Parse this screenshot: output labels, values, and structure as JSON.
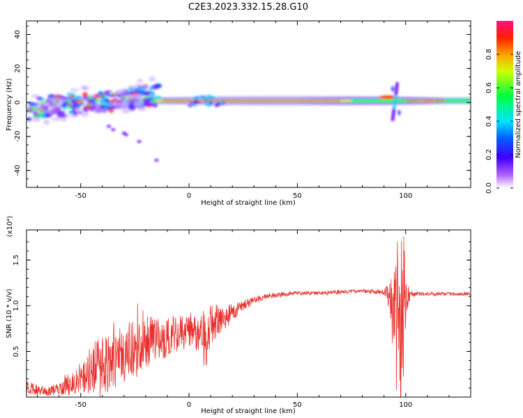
{
  "figure": {
    "title": "C2E3.2023.332.15.28.G10"
  },
  "chart_data": [
    {
      "type": "heatmap",
      "title": "C2E3.2023.332.15.28.G10",
      "xlabel": "Height of straight line (km)",
      "ylabel": "Frequency (Hz)",
      "xlim": [
        -75,
        130
      ],
      "ylim": [
        -50,
        48
      ],
      "xticks": [
        "-50",
        "0",
        "50",
        "100"
      ],
      "yticks": [
        "40",
        "20",
        "0",
        "-20",
        "-40"
      ],
      "colorbar": {
        "label": "Normalized spectral amplitude",
        "range": [
          0,
          1
        ],
        "ticks": [
          "0.0",
          "0.2",
          "0.4",
          "0.6",
          "0.8"
        ],
        "colors": [
          "#ffffff",
          "#7a00ff",
          "#0000ff",
          "#00e5ff",
          "#00ff40",
          "#ffff00",
          "#ff8000",
          "#ff0000"
        ]
      },
      "features": [
        {
          "x_range": [
            -75,
            130
          ],
          "frequency": 1,
          "description": "dominant ridge"
        },
        {
          "x": 95,
          "frequency_range": [
            -10,
            12
          ],
          "description": "broadband burst"
        },
        {
          "x_range": [
            -40,
            -28
          ],
          "frequency_range": [
            -35,
            -15
          ],
          "description": "descending scatter"
        }
      ]
    },
    {
      "type": "line",
      "xlabel": "Height of straight line (km)",
      "ylabel": "SNR (10 * v/v)",
      "scale_label": "(x10⁴)",
      "xlim": [
        -75,
        130
      ],
      "ylim": [
        0,
        1.83
      ],
      "xticks": [
        "-50",
        "0",
        "50",
        "100"
      ],
      "yticks": [
        "1.5",
        "1.0",
        "0.5"
      ],
      "color": "#e8302c",
      "envelope": {
        "x": [
          -75,
          -70,
          -65,
          -60,
          -55,
          -50,
          -45,
          -40,
          -35,
          -30,
          -25,
          -20,
          -15,
          -10,
          -5,
          0,
          5,
          8,
          10,
          15,
          20,
          25,
          30,
          35,
          40,
          50,
          60,
          70,
          80,
          90,
          93,
          95,
          97,
          99,
          100,
          102,
          105,
          110,
          120,
          130
        ],
        "mean": [
          0.12,
          0.08,
          0.06,
          0.09,
          0.14,
          0.22,
          0.3,
          0.36,
          0.42,
          0.48,
          0.55,
          0.6,
          0.62,
          0.66,
          0.7,
          0.72,
          0.76,
          0.55,
          0.82,
          0.85,
          0.92,
          1.0,
          1.06,
          1.1,
          1.12,
          1.14,
          1.14,
          1.15,
          1.16,
          1.15,
          1.1,
          0.9,
          0.8,
          0.9,
          1.1,
          1.12,
          1.13,
          1.13,
          1.13,
          1.13
        ],
        "spread": [
          0.08,
          0.06,
          0.05,
          0.08,
          0.12,
          0.18,
          0.26,
          0.32,
          0.36,
          0.32,
          0.3,
          0.28,
          0.26,
          0.22,
          0.2,
          0.18,
          0.3,
          0.3,
          0.24,
          0.16,
          0.1,
          0.06,
          0.04,
          0.03,
          0.03,
          0.02,
          0.02,
          0.02,
          0.02,
          0.03,
          0.2,
          0.8,
          0.95,
          0.95,
          0.3,
          0.04,
          0.02,
          0.02,
          0.02,
          0.02
        ]
      }
    }
  ]
}
